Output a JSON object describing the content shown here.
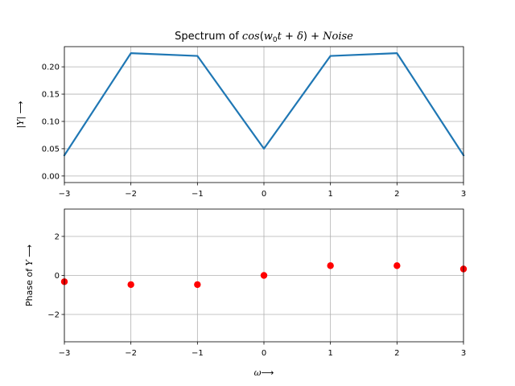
{
  "chart_data": [
    {
      "type": "line",
      "title": "Spectrum of cos(w0t + δ) + Noise",
      "xlabel": "",
      "ylabel": "|Y| ⟶",
      "xlim": [
        -3,
        3
      ],
      "ylim": [
        -0.012,
        0.237
      ],
      "grid": true,
      "x": [
        -3,
        -2,
        -1,
        0,
        1,
        2,
        3
      ],
      "series": [
        {
          "color": "#1f77b4",
          "values": [
            0.038,
            0.225,
            0.22,
            0.05,
            0.22,
            0.225,
            0.038
          ]
        }
      ],
      "xticks": [
        -3,
        -2,
        -1,
        0,
        1,
        2,
        3
      ],
      "xtick_labels": [
        "−3",
        "−2",
        "−1",
        "0",
        "1",
        "2",
        "3"
      ],
      "yticks": [
        0.0,
        0.05,
        0.1,
        0.15,
        0.2
      ],
      "ytick_labels": [
        "0.00",
        "0.05",
        "0.10",
        "0.15",
        "0.20"
      ]
    },
    {
      "type": "scatter",
      "title": "",
      "xlabel": "ω⟶",
      "ylabel": "Phase of Y ⟶",
      "xlim": [
        -3,
        3
      ],
      "ylim": [
        -3.4,
        3.4
      ],
      "grid": true,
      "x": [
        -3,
        -2,
        -1,
        0,
        1,
        2,
        3
      ],
      "series": [
        {
          "color": "#ff0000",
          "values": [
            -0.32,
            -0.47,
            -0.47,
            0.0,
            0.5,
            0.5,
            0.33
          ]
        }
      ],
      "xticks": [
        -3,
        -2,
        -1,
        0,
        1,
        2,
        3
      ],
      "xtick_labels": [
        "−3",
        "−2",
        "−1",
        "0",
        "1",
        "2",
        "3"
      ],
      "yticks": [
        -2,
        0,
        2
      ],
      "ytick_labels": [
        "−2",
        "0",
        "2"
      ]
    }
  ]
}
